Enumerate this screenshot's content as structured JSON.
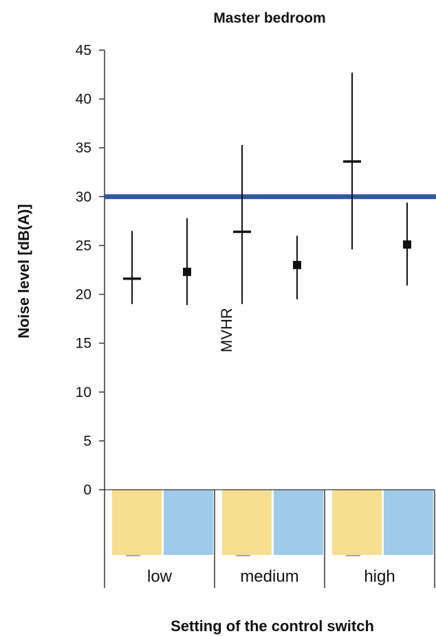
{
  "chart_data": {
    "type": "scatter",
    "title": "Master bedroom",
    "xlabel": "Setting of the control switch",
    "ylabel": "Noise level [dB(A)]",
    "ylim": [
      0,
      45
    ],
    "yticks": [
      "0",
      "5",
      "10",
      "15",
      "20",
      "25",
      "30",
      "35",
      "40",
      "45"
    ],
    "categories": [
      "low",
      "medium",
      "high"
    ],
    "reference_line": {
      "value": 30,
      "color": "#2e5aa0"
    },
    "series": [
      {
        "marker": "dash",
        "color": "#111111",
        "points": [
          {
            "category": "low",
            "value": 21.6,
            "low": 19.0,
            "high": 26.5
          },
          {
            "category": "medium",
            "value": 26.4,
            "low": 19.0,
            "high": 35.3
          },
          {
            "category": "high",
            "value": 33.6,
            "low": 24.6,
            "high": 42.7
          }
        ]
      },
      {
        "marker": "square",
        "color": "#111111",
        "points": [
          {
            "category": "low",
            "value": 22.3,
            "low": 18.9,
            "high": 27.8
          },
          {
            "category": "medium",
            "value": 23.0,
            "low": 19.5,
            "high": 26.0
          },
          {
            "category": "high",
            "value": 25.1,
            "low": 20.9,
            "high": 29.4
          }
        ]
      }
    ],
    "annotations": [
      {
        "text": "MVHR",
        "near": "medium"
      }
    ],
    "box_colors": [
      "#f5de8f",
      "#9ecbe8"
    ]
  }
}
